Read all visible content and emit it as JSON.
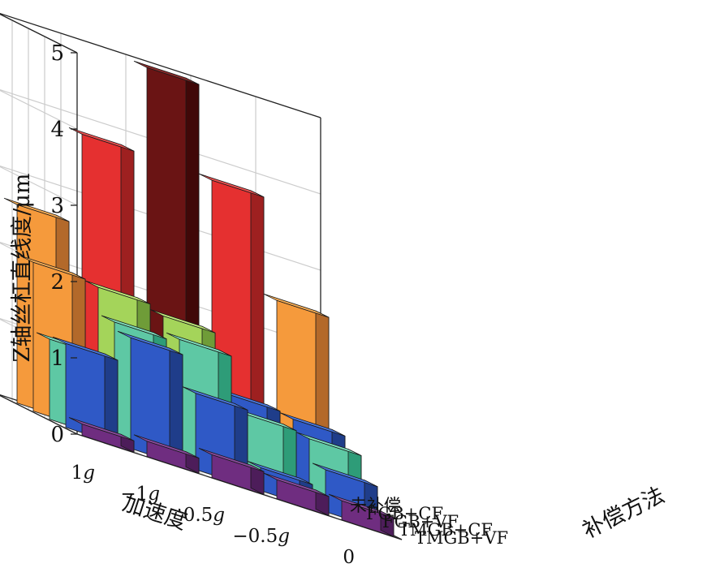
{
  "chart_data": {
    "type": "bar3d",
    "title": "",
    "zlabel": "Z轴丝杠直线度/μm",
    "xlabel": "加速度",
    "ylabel": "补偿方法",
    "zlim": [
      0,
      5
    ],
    "z_ticks": [
      "0",
      "1",
      "2",
      "3",
      "4",
      "5"
    ],
    "x_categories": [
      {
        "pre": "",
        "num": "1",
        "unit": "g"
      },
      {
        "pre": "−",
        "num": "1",
        "unit": "g"
      },
      {
        "pre": "",
        "num": "0.5",
        "unit": "g"
      },
      {
        "pre": "−",
        "num": "0.5",
        "unit": "g"
      },
      {
        "pre": "",
        "num": "0",
        "unit": ""
      }
    ],
    "y_categories": [
      "TMGB+VF",
      "TMGB+CF",
      "FGB+VF",
      "FGB+CF",
      "未补偿"
    ],
    "grid": true,
    "series": [
      {
        "name": "TMGB+VF",
        "values": [
          0.15,
          0.2,
          0.3,
          0.25,
          0.25
        ]
      },
      {
        "name": "TMGB+CF",
        "values": [
          1.1,
          1.45,
          1.0,
          0.3,
          0.55
        ]
      },
      {
        "name": "FGB+VF",
        "values": [
          1.05,
          1.55,
          1.6,
          0.9,
          0.85
        ]
      },
      {
        "name": "FGB+CF",
        "values": [
          1.95,
          1.9,
          1.8,
          1.05,
          1.0
        ]
      },
      {
        "name": "未补偿",
        "values": [
          2.6,
          3.8,
          4.95,
          3.75,
          2.45
        ]
      }
    ]
  }
}
